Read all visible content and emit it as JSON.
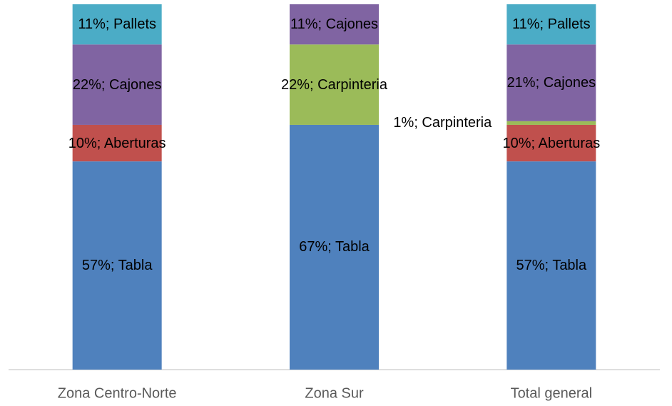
{
  "chart_data": {
    "type": "stacked_bar",
    "categories": [
      "Zona Centro-Norte",
      "Zona Sur",
      "Total general"
    ],
    "series": [
      {
        "name": "Tabla",
        "color": "#4f81bd",
        "values": [
          57,
          67,
          57
        ],
        "value_labels": [
          "57%; Tabla",
          "67%; Tabla",
          "57%; Tabla"
        ]
      },
      {
        "name": "Aberturas",
        "color": "#c0504d",
        "values": [
          10,
          null,
          10
        ],
        "value_labels": [
          "10%; Aberturas",
          null,
          "10%; Aberturas"
        ]
      },
      {
        "name": "Carpinteria",
        "color": "#9bbb59",
        "values": [
          null,
          22,
          1
        ],
        "value_labels": [
          null,
          "22%; Carpinteria",
          "1%; Carpinteria"
        ]
      },
      {
        "name": "Cajones",
        "color": "#8064a2",
        "values": [
          22,
          11,
          21
        ],
        "value_labels": [
          "22%; Cajones",
          "11%; Cajones",
          "21%; Cajones"
        ]
      },
      {
        "name": "Pallets",
        "color": "#4bacc6",
        "values": [
          11,
          null,
          11
        ],
        "value_labels": [
          "11%; Pallets",
          null,
          "11%; Pallets"
        ]
      }
    ]
  }
}
